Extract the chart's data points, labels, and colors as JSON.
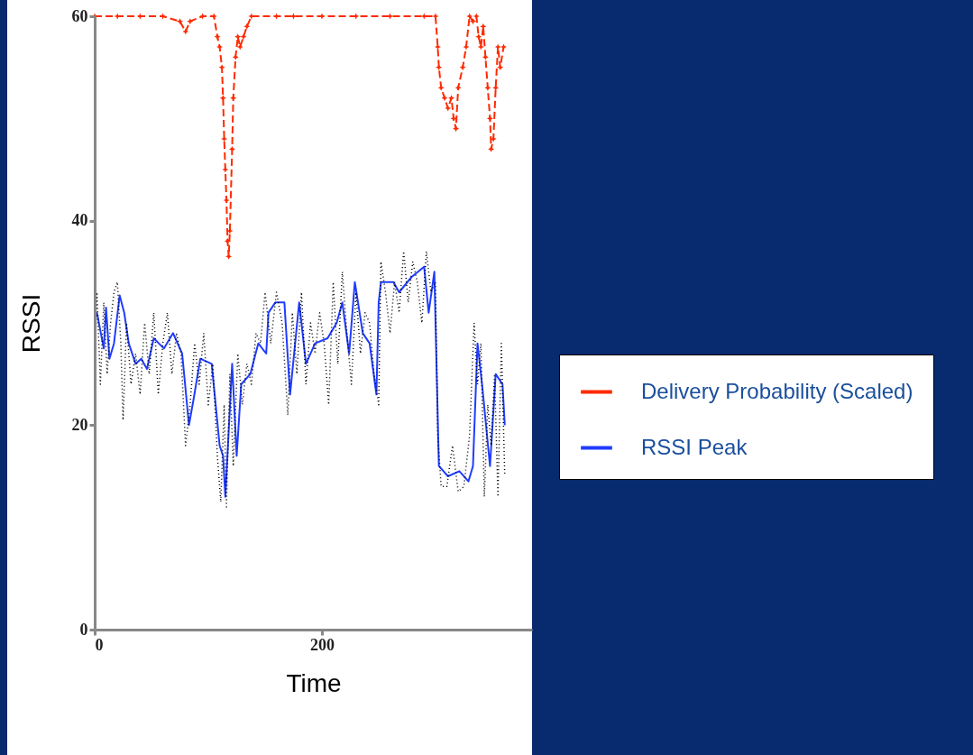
{
  "chart_data": {
    "type": "line",
    "xlabel": "Time",
    "ylabel": "RSSI",
    "xlim": [
      0,
      385
    ],
    "ylim": [
      0,
      60
    ],
    "xticks": [
      0,
      200
    ],
    "yticks": [
      0,
      20,
      40,
      60
    ],
    "grid": false,
    "legend": "right",
    "series": [
      {
        "name": "Delivery Probability (Scaled)",
        "color": "#ff2a00",
        "marker": "star",
        "line_style": "dashed",
        "x": [
          0,
          20,
          40,
          60,
          75,
          80,
          84,
          95,
          105,
          108,
          110,
          112,
          113,
          114,
          115,
          116,
          117,
          118,
          119,
          121,
          122,
          124,
          126,
          128,
          131,
          134,
          138,
          160,
          175,
          200,
          230,
          260,
          290,
          300,
          302,
          303,
          305,
          308,
          311,
          314,
          316,
          318,
          320,
          324,
          327,
          330,
          333,
          336,
          338,
          340,
          342,
          344,
          346,
          348,
          349,
          351,
          353,
          355,
          357,
          360
        ],
        "values": [
          60,
          60,
          60,
          60,
          59.5,
          58.5,
          59.5,
          60,
          60,
          58,
          57,
          55,
          52,
          48,
          45,
          42,
          38,
          36.5,
          39,
          47,
          52,
          56,
          58,
          57,
          58,
          59,
          60,
          60,
          60,
          60,
          60,
          60,
          60,
          60,
          57,
          55,
          53,
          52,
          51,
          52,
          50,
          49,
          53,
          55,
          57,
          60,
          59.5,
          60,
          58,
          57,
          59,
          56,
          53,
          50,
          47,
          48,
          53,
          57,
          55,
          57
        ]
      },
      {
        "name": "RSSI Peak",
        "color": "#1f3cff",
        "marker": "none",
        "line_style": "solid",
        "x": [
          2,
          8,
          10,
          13,
          17,
          22,
          26,
          30,
          36,
          41,
          46,
          52,
          61,
          69,
          77,
          83,
          87,
          93,
          103,
          110,
          113,
          115,
          121,
          125,
          129,
          137,
          144,
          151,
          153,
          159,
          167,
          172,
          180,
          186,
          194,
          205,
          213,
          218,
          224,
          229,
          236,
          242,
          248,
          250,
          252,
          263,
          268,
          279,
          290,
          294,
          299,
          303,
          311,
          321,
          329,
          333,
          337,
          341,
          348,
          353,
          359,
          361
        ],
        "values": [
          31,
          27.5,
          31.5,
          26.5,
          28,
          32.7,
          31,
          28,
          26,
          26.5,
          25.5,
          28.5,
          27.5,
          29,
          27,
          20,
          22.5,
          26.5,
          26,
          18,
          17,
          13,
          26,
          17,
          24,
          25,
          28,
          27,
          31,
          32,
          32,
          23,
          32,
          26,
          28,
          28.5,
          30,
          32,
          27,
          34,
          29,
          28,
          23,
          32,
          34,
          34,
          33,
          34.5,
          35.5,
          31,
          35,
          16,
          15,
          15.5,
          14.5,
          16,
          28,
          24,
          16,
          25,
          24,
          20
        ]
      },
      {
        "color": "#000000",
        "marker": "none",
        "line_style": "dotted",
        "x": [
          0,
          2,
          5,
          8,
          11,
          14,
          17,
          20,
          23,
          25,
          28,
          32,
          36,
          40,
          44,
          48,
          52,
          56,
          60,
          64,
          68,
          72,
          76,
          80,
          84,
          88,
          92,
          96,
          100,
          104,
          108,
          111,
          114,
          116,
          119,
          122,
          126,
          130,
          134,
          138,
          142,
          146,
          150,
          155,
          160,
          165,
          170,
          174,
          178,
          182,
          186,
          190,
          194,
          198,
          202,
          206,
          210,
          214,
          218,
          222,
          226,
          230,
          234,
          238,
          242,
          246,
          250,
          252,
          256,
          260,
          264,
          268,
          272,
          276,
          280,
          284,
          288,
          292,
          296,
          300,
          302,
          305,
          310,
          315,
          320,
          325,
          330,
          334,
          337,
          340,
          343,
          346,
          349,
          352,
          355,
          358,
          361
        ],
        "values": [
          25,
          33,
          24,
          32,
          25,
          30,
          33,
          34,
          28,
          20.5,
          30,
          24,
          27,
          23,
          30,
          25,
          31,
          23,
          28,
          31,
          25,
          29,
          27,
          18,
          22,
          28,
          24,
          29,
          22,
          26,
          17,
          12.5,
          22,
          12,
          25,
          16,
          27,
          22,
          26,
          24,
          29,
          28,
          33,
          28,
          33,
          30,
          21,
          31,
          25,
          33,
          24,
          30,
          27,
          31,
          28,
          22,
          34,
          26,
          35,
          29,
          24,
          33,
          27,
          31,
          30,
          25,
          22,
          36,
          33,
          29,
          34,
          31,
          37,
          32,
          36,
          34,
          30,
          37,
          33,
          34,
          19,
          14,
          14,
          18,
          13.5,
          14,
          19,
          30,
          24,
          28,
          13,
          22,
          18,
          25,
          13,
          28,
          15
        ]
      }
    ]
  }
}
